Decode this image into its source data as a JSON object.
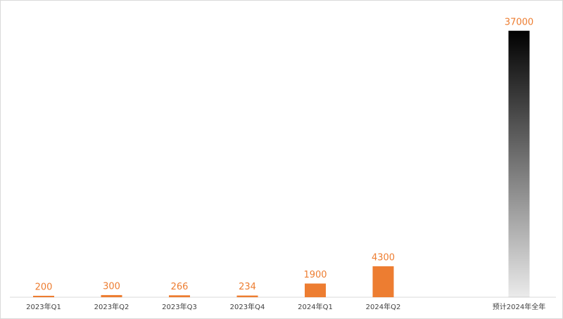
{
  "chart_data": {
    "type": "bar",
    "categories": [
      "2023年Q1",
      "2023年Q2",
      "2023年Q3",
      "2023年Q4",
      "2024年Q1",
      "2024年Q2",
      "预计2024年全年"
    ],
    "values": [
      200,
      300,
      266,
      234,
      1900,
      4300,
      37000
    ],
    "colors": [
      "#ED7D31",
      "#ED7D31",
      "#ED7D31",
      "#ED7D31",
      "#ED7D31",
      "#ED7D31",
      "#F8A285"
    ],
    "ylim": [
      0,
      40000
    ]
  }
}
